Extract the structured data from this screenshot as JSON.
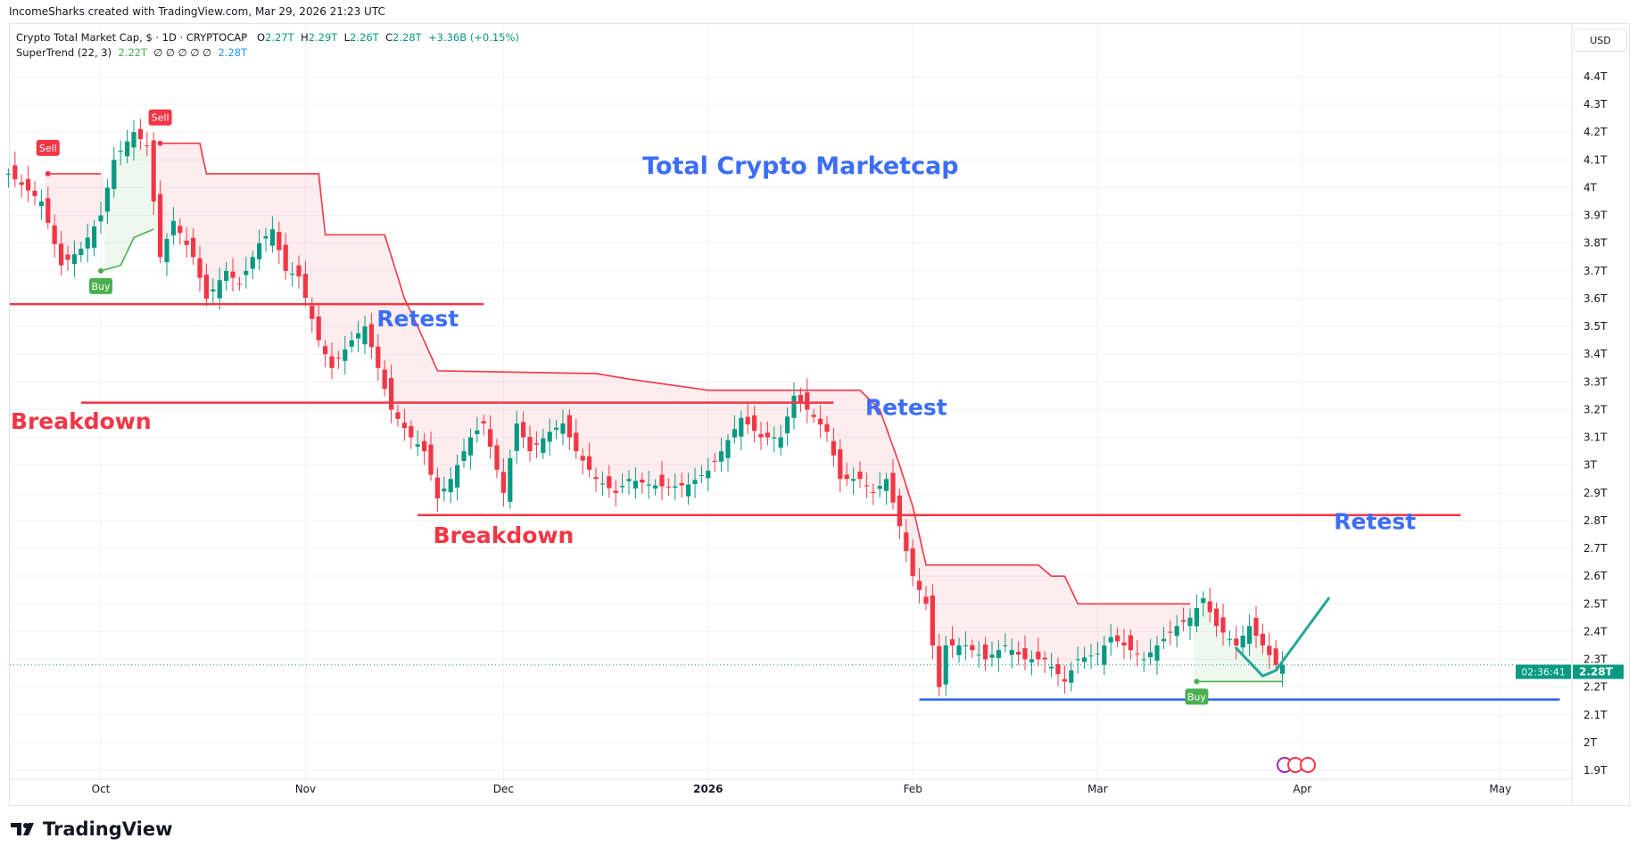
{
  "header": {
    "credit": "IncomeSharks created with TradingView.com, Mar 29, 2026 21:23 UTC"
  },
  "legend": {
    "symbol": "Crypto Total Market Cap, $ · 1D · CRYPTOCAP",
    "o_label": "O",
    "o": "2.27T",
    "h_label": "H",
    "h": "2.29T",
    "l_label": "L",
    "l": "2.26T",
    "c_label": "C",
    "c": "2.28T",
    "change": "+3.36B (+0.15%)",
    "indicator": "SuperTrend (22, 3)",
    "indicator_value": "2.22T",
    "indicator_nulls": "∅ ∅ ∅ ∅ ∅",
    "indicator_value2": "2.28T"
  },
  "currency_button": "USD",
  "price_label": {
    "value": "2.28T",
    "countdown": "02:36:41"
  },
  "brand": "TradingView",
  "colors": {
    "up": "#089981",
    "down": "#f23645",
    "st_up": "#4caf50",
    "st_down": "#f23645",
    "annotation_blue": "#3d6ef5",
    "annotation_red": "#f23645",
    "support": "#2962ff",
    "path": "#26a69a"
  },
  "chart_data": {
    "type": "candlestick",
    "title": "Total Crypto Marketcap",
    "y_ticks": [
      "4.4T",
      "4.3T",
      "4.2T",
      "4.1T",
      "4T",
      "3.9T",
      "3.8T",
      "3.7T",
      "3.6T",
      "3.5T",
      "3.4T",
      "3.3T",
      "3.2T",
      "3.1T",
      "3T",
      "2.9T",
      "2.8T",
      "2.7T",
      "2.6T",
      "2.5T",
      "2.4T",
      "2.3T",
      "2.2T",
      "2.1T",
      "2T",
      "1.9T"
    ],
    "ylim": [
      1.9,
      4.4
    ],
    "unit": "T USD",
    "x_ticks": [
      {
        "date": "2025-10-01",
        "label": "Oct"
      },
      {
        "date": "2025-11-01",
        "label": "Nov"
      },
      {
        "date": "2025-12-01",
        "label": "Dec"
      },
      {
        "date": "2026-01-01",
        "label": "2026",
        "bold": true
      },
      {
        "date": "2026-02-01",
        "label": "Feb"
      },
      {
        "date": "2026-03-01",
        "label": "Mar"
      },
      {
        "date": "2026-04-01",
        "label": "Apr"
      },
      {
        "date": "2026-05-01",
        "label": "May"
      }
    ],
    "close_keyframes": [
      [
        "2025-09-17",
        4.05
      ],
      [
        "2025-09-22",
        3.95
      ],
      [
        "2025-09-25",
        3.72
      ],
      [
        "2025-09-28",
        3.78
      ],
      [
        "2025-10-01",
        3.9
      ],
      [
        "2025-10-03",
        4.1
      ],
      [
        "2025-10-06",
        4.2
      ],
      [
        "2025-10-08",
        4.15
      ],
      [
        "2025-10-10",
        3.75
      ],
      [
        "2025-10-12",
        3.88
      ],
      [
        "2025-10-15",
        3.75
      ],
      [
        "2025-10-17",
        3.6
      ],
      [
        "2025-10-20",
        3.7
      ],
      [
        "2025-10-22",
        3.65
      ],
      [
        "2025-10-25",
        3.8
      ],
      [
        "2025-10-27",
        3.85
      ],
      [
        "2025-10-29",
        3.7
      ],
      [
        "2025-10-31",
        3.68
      ],
      [
        "2025-11-03",
        3.45
      ],
      [
        "2025-11-05",
        3.35
      ],
      [
        "2025-11-08",
        3.45
      ],
      [
        "2025-11-10",
        3.5
      ],
      [
        "2025-11-12",
        3.35
      ],
      [
        "2025-11-14",
        3.2
      ],
      [
        "2025-11-17",
        3.1
      ],
      [
        "2025-11-19",
        3.05
      ],
      [
        "2025-11-21",
        2.88
      ],
      [
        "2025-11-23",
        2.95
      ],
      [
        "2025-11-26",
        3.1
      ],
      [
        "2025-11-28",
        3.15
      ],
      [
        "2025-12-01",
        2.9
      ],
      [
        "2025-12-03",
        3.15
      ],
      [
        "2025-12-05",
        3.05
      ],
      [
        "2025-12-08",
        3.12
      ],
      [
        "2025-12-10",
        3.15
      ],
      [
        "2025-12-12",
        3.05
      ],
      [
        "2025-12-15",
        2.95
      ],
      [
        "2025-12-18",
        2.9
      ],
      [
        "2025-12-20",
        2.95
      ],
      [
        "2025-12-23",
        2.93
      ],
      [
        "2025-12-26",
        2.92
      ],
      [
        "2025-12-29",
        2.93
      ],
      [
        "2026-01-01",
        2.98
      ],
      [
        "2026-01-03",
        3.05
      ],
      [
        "2026-01-06",
        3.17
      ],
      [
        "2026-01-09",
        3.1
      ],
      [
        "2026-01-12",
        3.1
      ],
      [
        "2026-01-14",
        3.25
      ],
      [
        "2026-01-16",
        3.2
      ],
      [
        "2026-01-19",
        3.12
      ],
      [
        "2026-01-21",
        2.95
      ],
      [
        "2026-01-24",
        2.95
      ],
      [
        "2026-01-26",
        2.9
      ],
      [
        "2026-01-28",
        2.95
      ],
      [
        "2026-01-30",
        2.78
      ],
      [
        "2026-02-01",
        2.6
      ],
      [
        "2026-02-03",
        2.5
      ],
      [
        "2026-02-05",
        2.2
      ],
      [
        "2026-02-06",
        2.35
      ],
      [
        "2026-02-09",
        2.35
      ],
      [
        "2026-02-12",
        2.3
      ],
      [
        "2026-02-15",
        2.35
      ],
      [
        "2026-02-18",
        2.3
      ],
      [
        "2026-02-21",
        2.3
      ],
      [
        "2026-02-24",
        2.22
      ],
      [
        "2026-02-26",
        2.3
      ],
      [
        "2026-03-01",
        2.32
      ],
      [
        "2026-03-03",
        2.38
      ],
      [
        "2026-03-05",
        2.35
      ],
      [
        "2026-03-08",
        2.3
      ],
      [
        "2026-03-10",
        2.35
      ],
      [
        "2026-03-13",
        2.42
      ],
      [
        "2026-03-15",
        2.45
      ],
      [
        "2026-03-17",
        2.52
      ],
      [
        "2026-03-19",
        2.42
      ],
      [
        "2026-03-22",
        2.35
      ],
      [
        "2026-03-24",
        2.42
      ],
      [
        "2026-03-26",
        2.35
      ],
      [
        "2026-03-28",
        2.28
      ],
      [
        "2026-03-29",
        2.28
      ]
    ],
    "supertrend": [
      {
        "trend": "down",
        "points": [
          [
            "2025-09-23",
            4.05
          ],
          [
            "2025-10-01",
            4.05
          ]
        ]
      },
      {
        "trend": "up",
        "points": [
          [
            "2025-10-01",
            3.7
          ],
          [
            "2025-10-04",
            3.72
          ],
          [
            "2025-10-06",
            3.82
          ],
          [
            "2025-10-09",
            3.85
          ]
        ]
      },
      {
        "trend": "down",
        "points": [
          [
            "2025-10-10",
            4.16
          ],
          [
            "2025-10-16",
            4.16
          ],
          [
            "2025-10-17",
            4.05
          ],
          [
            "2025-11-03",
            4.05
          ],
          [
            "2025-11-04",
            3.83
          ],
          [
            "2025-11-13",
            3.83
          ],
          [
            "2025-11-16",
            3.6
          ],
          [
            "2025-11-18",
            3.5
          ],
          [
            "2025-11-21",
            3.34
          ],
          [
            "2025-12-15",
            3.33
          ],
          [
            "2025-12-20",
            3.31
          ],
          [
            "2026-01-01",
            3.27
          ],
          [
            "2026-01-24",
            3.27
          ],
          [
            "2026-01-27",
            3.2
          ],
          [
            "2026-01-30",
            3.0
          ],
          [
            "2026-02-01",
            2.85
          ],
          [
            "2026-02-03",
            2.64
          ],
          [
            "2026-02-20",
            2.64
          ],
          [
            "2026-02-22",
            2.6
          ],
          [
            "2026-02-24",
            2.6
          ],
          [
            "2026-02-26",
            2.5
          ],
          [
            "2026-03-15",
            2.5
          ]
        ]
      },
      {
        "trend": "up",
        "points": [
          [
            "2026-03-16",
            2.22
          ],
          [
            "2026-03-29",
            2.22
          ]
        ]
      }
    ],
    "signals": [
      {
        "type": "Sell",
        "date": "2025-09-23",
        "price": 4.05
      },
      {
        "type": "Buy",
        "date": "2025-10-01",
        "price": 3.7
      },
      {
        "type": "Sell",
        "date": "2025-10-10",
        "price": 4.16
      },
      {
        "type": "Buy",
        "date": "2026-03-16",
        "price": 2.22
      }
    ],
    "horizontal_lines": [
      {
        "price": 3.58,
        "from": "2025-09-17",
        "to": "2025-11-28",
        "color": "#f23645"
      },
      {
        "price": 3.225,
        "from": "2025-09-28",
        "to": "2026-01-20",
        "color": "#f23645"
      },
      {
        "price": 2.82,
        "from": "2025-11-18",
        "to": "2026-04-25",
        "color": "#f23645"
      },
      {
        "price": 2.155,
        "from": "2026-02-02",
        "to": "2026-05-10",
        "color": "#2962ff"
      }
    ],
    "projection": [
      [
        "2026-03-22",
        2.34
      ],
      [
        "2026-03-26",
        2.24
      ],
      [
        "2026-03-28",
        2.26
      ],
      [
        "2026-04-05",
        2.52
      ]
    ],
    "annotations": [
      {
        "text": "Total Crypto Marketcap",
        "date": "2026-01-15",
        "price": 4.05,
        "color": "blue"
      },
      {
        "text": "Retest",
        "date": "2025-11-18",
        "price": 3.5,
        "color": "blue"
      },
      {
        "text": "Retest",
        "date": "2026-01-31",
        "price": 3.18,
        "color": "blue"
      },
      {
        "text": "Retest",
        "date": "2026-04-12",
        "price": 2.77,
        "color": "blue"
      },
      {
        "text": "Breakdown",
        "date": "2025-09-28",
        "price": 3.13,
        "color": "red"
      },
      {
        "text": "Breakdown",
        "date": "2025-12-01",
        "price": 2.72,
        "color": "red"
      }
    ],
    "current_price": 2.28
  }
}
